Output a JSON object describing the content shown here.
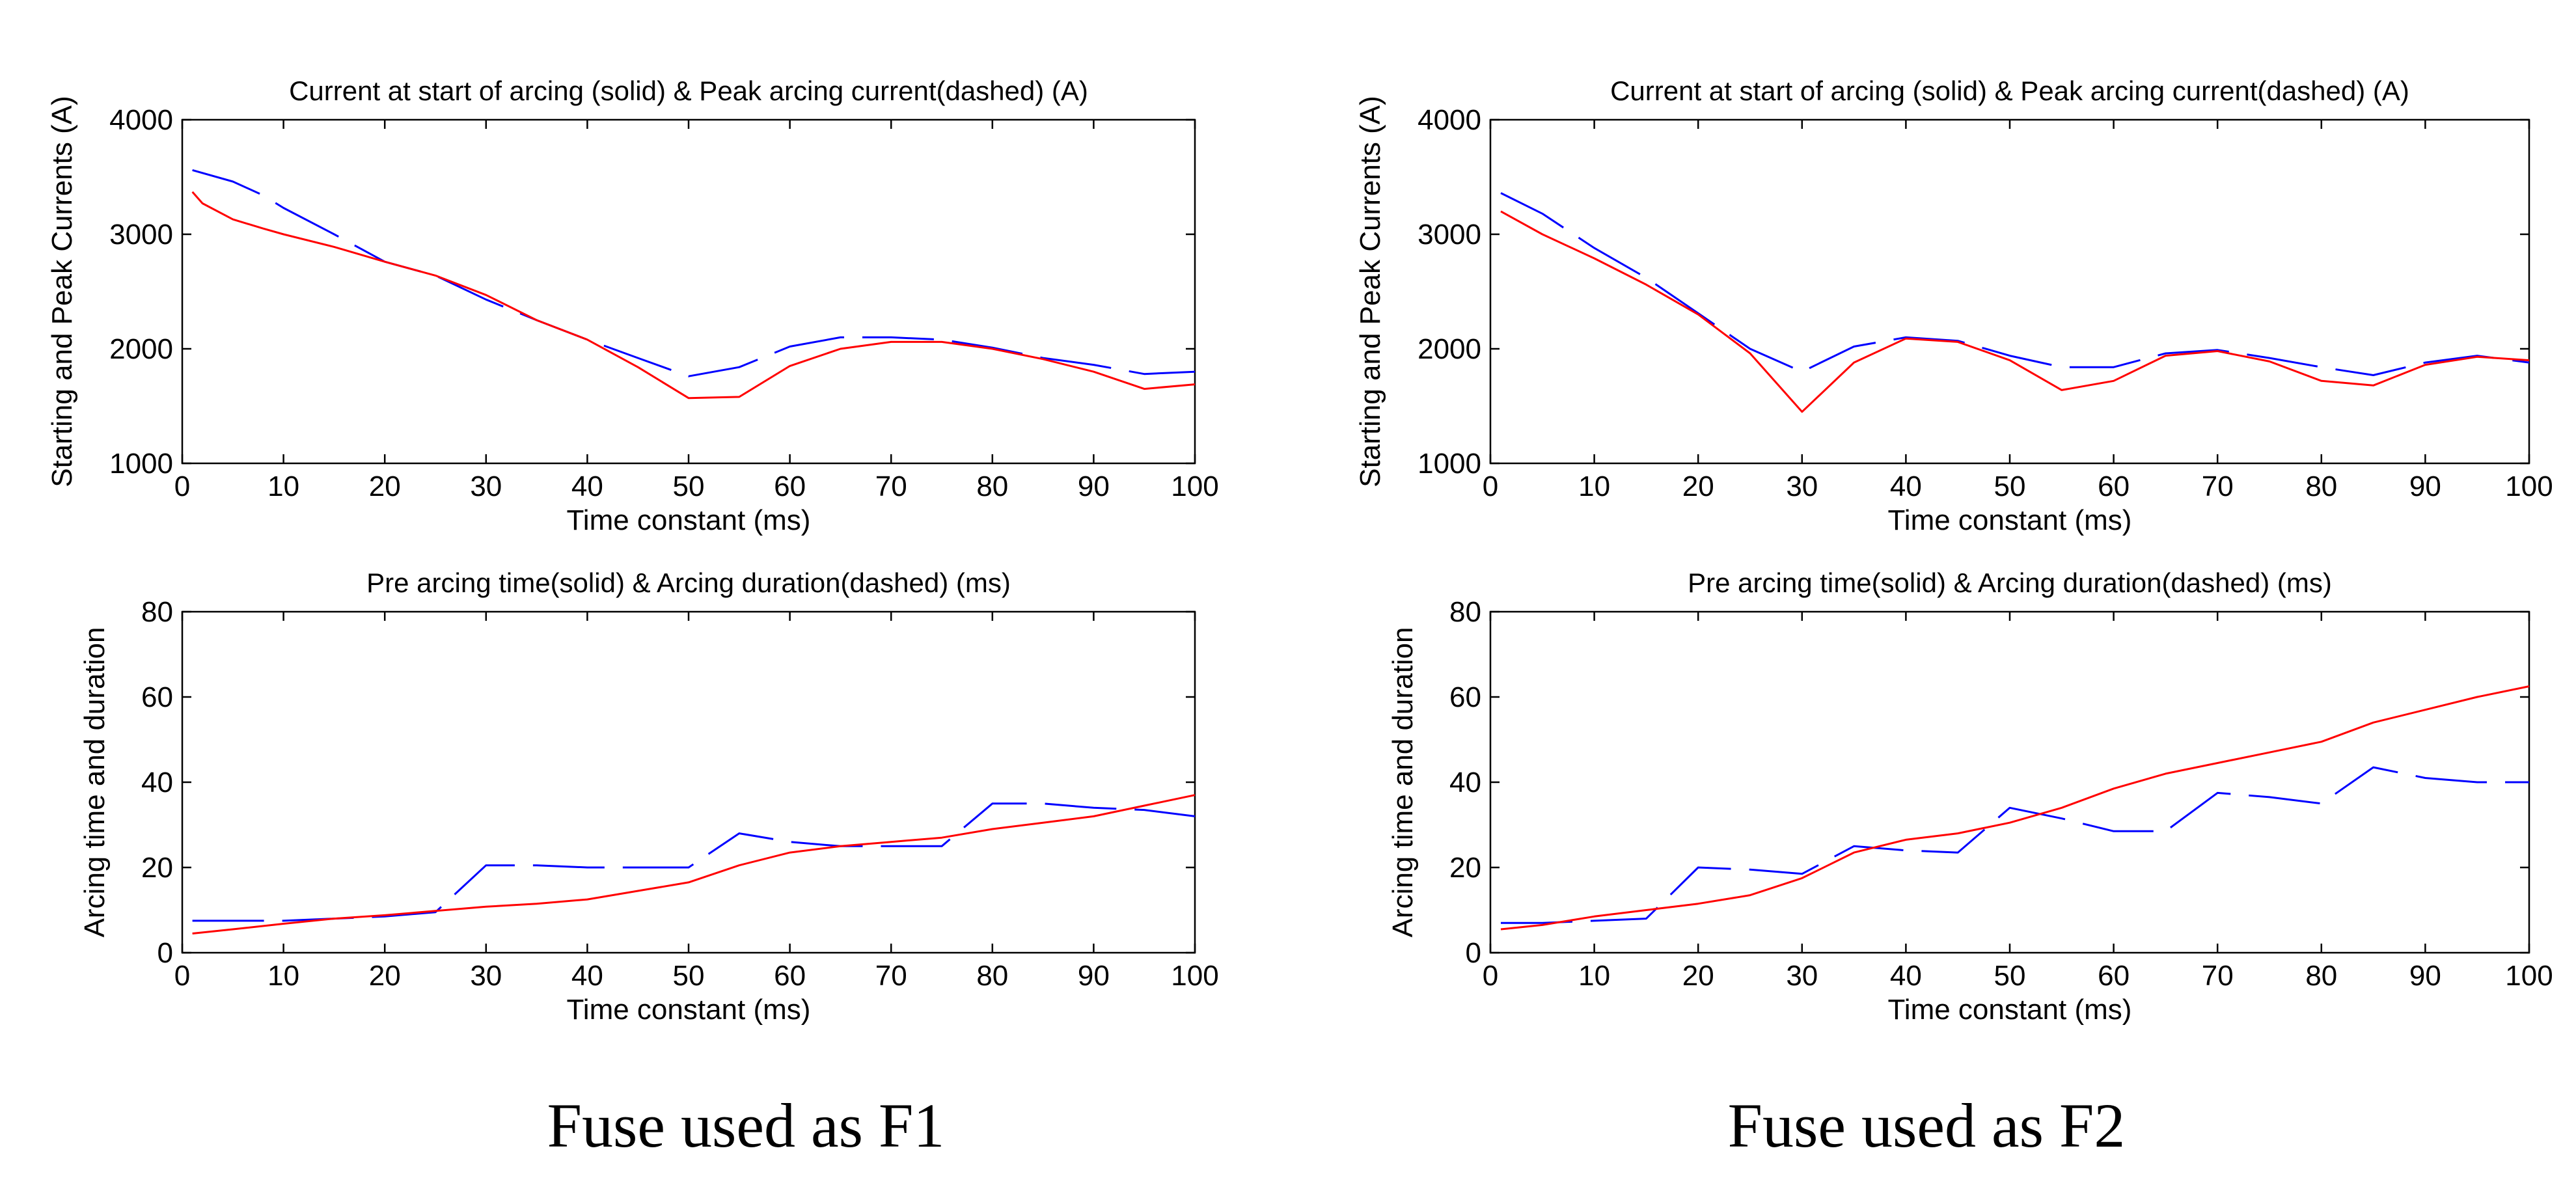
{
  "captions": [
    "Fuse used as F1",
    "Fuse used as F2"
  ],
  "colors": {
    "solid": "#ff0000",
    "dashed": "#0000ff",
    "axis": "#000000"
  },
  "chart_data": [
    {
      "type": "line",
      "panel": "F1-top",
      "title": "Current at start of arcing (solid) & Peak arcing current(dashed) (A)",
      "xlabel": "Time constant (ms)",
      "ylabel": "Starting and Peak Currents (A)",
      "xlim": [
        0,
        100
      ],
      "ylim": [
        1000,
        4000
      ],
      "xticks": [
        0,
        10,
        20,
        30,
        40,
        50,
        60,
        70,
        80,
        90,
        100
      ],
      "yticks": [
        1000,
        2000,
        3000,
        4000
      ],
      "grid": false,
      "series": [
        {
          "name": "Current at start of arcing",
          "style": "solid",
          "x": [
            1,
            2,
            5,
            8,
            10,
            15,
            20,
            25,
            30,
            35,
            40,
            45,
            50,
            55,
            60,
            65,
            70,
            75,
            80,
            85,
            90,
            95,
            100
          ],
          "y": [
            3370,
            3270,
            3130,
            3050,
            3000,
            2890,
            2760,
            2640,
            2470,
            2250,
            2080,
            1840,
            1570,
            1580,
            1850,
            2000,
            2060,
            2060,
            2000,
            1910,
            1800,
            1650,
            1690
          ]
        },
        {
          "name": "Peak arcing current",
          "style": "dashed",
          "x": [
            1,
            5,
            8,
            10,
            15,
            20,
            25,
            30,
            35,
            40,
            45,
            50,
            55,
            60,
            65,
            70,
            75,
            80,
            85,
            90,
            95,
            100
          ],
          "y": [
            3560,
            3460,
            3340,
            3230,
            3000,
            2760,
            2640,
            2430,
            2250,
            2080,
            1920,
            1760,
            1840,
            2020,
            2100,
            2100,
            2080,
            2010,
            1920,
            1860,
            1780,
            1800
          ]
        }
      ]
    },
    {
      "type": "line",
      "panel": "F1-bottom",
      "title": "Pre arcing time(solid) & Arcing duration(dashed) (ms)",
      "xlabel": "Time constant (ms)",
      "ylabel": "Arcing time and duration",
      "xlim": [
        0,
        100
      ],
      "ylim": [
        0,
        80
      ],
      "xticks": [
        0,
        10,
        20,
        30,
        40,
        50,
        60,
        70,
        80,
        90,
        100
      ],
      "yticks": [
        0,
        20,
        40,
        60,
        80
      ],
      "grid": false,
      "series": [
        {
          "name": "Pre arcing time",
          "style": "solid",
          "x": [
            1,
            5,
            10,
            15,
            20,
            25,
            30,
            35,
            40,
            45,
            50,
            55,
            60,
            65,
            70,
            75,
            80,
            85,
            90,
            95,
            100
          ],
          "y": [
            4.5,
            5.5,
            6.8,
            8,
            8.8,
            9.8,
            10.8,
            11.5,
            12.5,
            14.5,
            16.5,
            20.5,
            23.5,
            25,
            26,
            27,
            29,
            30.5,
            32,
            34.5,
            37
          ]
        },
        {
          "name": "Arcing duration",
          "style": "dashed",
          "x": [
            1,
            5,
            10,
            15,
            20,
            25,
            30,
            35,
            40,
            45,
            50,
            55,
            60,
            65,
            70,
            75,
            80,
            85,
            90,
            95,
            100
          ],
          "y": [
            7.5,
            7.5,
            7.5,
            8,
            8.5,
            9.5,
            20.5,
            20.5,
            20,
            20,
            20,
            28,
            26,
            25,
            25,
            25,
            35,
            35,
            34,
            33.5,
            32
          ]
        }
      ]
    },
    {
      "type": "line",
      "panel": "F2-top",
      "title": "Current at start of arcing (solid) & Peak arcing current(dashed) (A)",
      "xlabel": "Time constant (ms)",
      "ylabel": "Starting and Peak Currents (A)",
      "xlim": [
        0,
        100
      ],
      "ylim": [
        1000,
        4000
      ],
      "xticks": [
        0,
        10,
        20,
        30,
        40,
        50,
        60,
        70,
        80,
        90,
        100
      ],
      "yticks": [
        1000,
        2000,
        3000,
        4000
      ],
      "grid": false,
      "series": [
        {
          "name": "Current at start of arcing",
          "style": "solid",
          "x": [
            1,
            5,
            10,
            15,
            20,
            25,
            30,
            35,
            40,
            45,
            50,
            55,
            60,
            65,
            70,
            75,
            80,
            85,
            90,
            95,
            100
          ],
          "y": [
            3200,
            3000,
            2790,
            2560,
            2300,
            1960,
            1450,
            1880,
            2090,
            2060,
            1900,
            1640,
            1720,
            1940,
            1980,
            1890,
            1720,
            1680,
            1860,
            1930,
            1900
          ]
        },
        {
          "name": "Peak arcing current",
          "style": "dashed",
          "x": [
            1,
            5,
            10,
            15,
            20,
            25,
            30,
            35,
            40,
            45,
            50,
            55,
            60,
            65,
            70,
            75,
            80,
            85,
            90,
            95,
            100
          ],
          "y": [
            3360,
            3180,
            2880,
            2620,
            2310,
            2000,
            1800,
            2020,
            2100,
            2070,
            1940,
            1840,
            1840,
            1960,
            1990,
            1920,
            1840,
            1770,
            1880,
            1940,
            1880
          ]
        }
      ]
    },
    {
      "type": "line",
      "panel": "F2-bottom",
      "title": "Pre arcing time(solid) & Arcing duration(dashed) (ms)",
      "xlabel": "Time constant (ms)",
      "ylabel": "Arcing time and duration",
      "xlim": [
        0,
        100
      ],
      "ylim": [
        0,
        80
      ],
      "xticks": [
        0,
        10,
        20,
        30,
        40,
        50,
        60,
        70,
        80,
        90,
        100
      ],
      "yticks": [
        0,
        20,
        40,
        60,
        80
      ],
      "grid": false,
      "series": [
        {
          "name": "Pre arcing time",
          "style": "solid",
          "x": [
            1,
            5,
            10,
            15,
            20,
            25,
            30,
            35,
            40,
            45,
            50,
            55,
            60,
            65,
            70,
            75,
            80,
            85,
            90,
            95,
            100
          ],
          "y": [
            5.5,
            6.5,
            8.5,
            10,
            11.5,
            13.5,
            17.5,
            23.5,
            26.5,
            28,
            30.5,
            34,
            38.5,
            42,
            44.5,
            47,
            49.5,
            54,
            57,
            60,
            62.5
          ]
        },
        {
          "name": "Arcing duration",
          "style": "dashed",
          "x": [
            1,
            5,
            10,
            15,
            20,
            25,
            30,
            35,
            40,
            45,
            50,
            55,
            60,
            65,
            70,
            75,
            80,
            85,
            90,
            95,
            100
          ],
          "y": [
            7,
            7,
            7.5,
            8,
            20,
            19.5,
            18.5,
            25,
            24,
            23.5,
            34,
            31.5,
            28.5,
            28.5,
            37.5,
            36.5,
            35,
            43.5,
            41,
            40,
            40
          ]
        }
      ]
    }
  ]
}
